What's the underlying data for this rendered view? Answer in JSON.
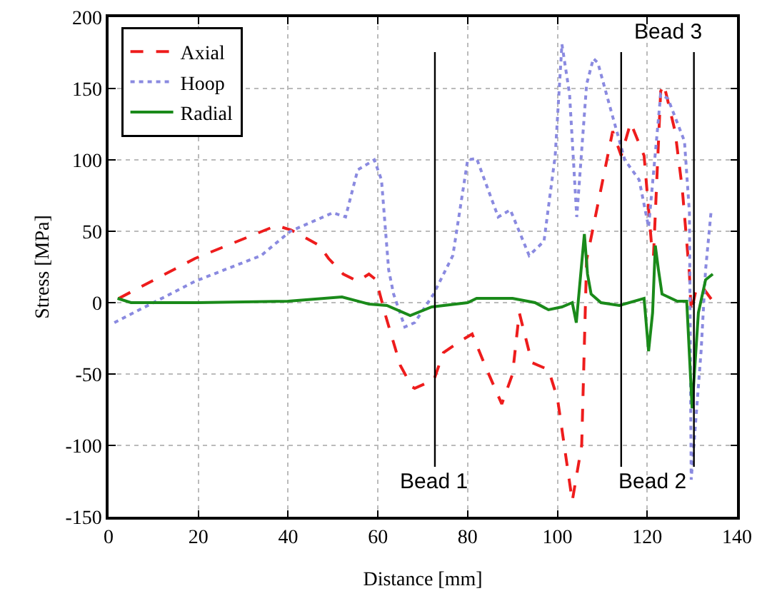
{
  "chart_data": {
    "type": "line",
    "xlabel": "Distance [mm]",
    "ylabel": "Stress [MPa]",
    "xlim": [
      0,
      140
    ],
    "xticks": [
      0,
      20,
      40,
      60,
      80,
      100,
      120,
      140
    ],
    "ylim": [
      -150,
      200
    ],
    "yticks": [
      -150,
      -100,
      -50,
      0,
      50,
      100,
      150,
      200
    ],
    "grid": true,
    "legend": "top left",
    "ref_lines": [
      {
        "axis": "x",
        "value": 72.7,
        "label": "Bead 1",
        "color": "#000000"
      },
      {
        "axis": "x",
        "value": 114.2,
        "label": "Bead 2",
        "color": "#000000"
      },
      {
        "axis": "x",
        "value": 130.4,
        "label": "Bead 3",
        "color": "#000000"
      }
    ],
    "series": [
      {
        "name": "Axial",
        "color": "#ee1c1c",
        "line_style": "dashed",
        "x": [
          2.3,
          19.3,
          37.4,
          40.6,
          47,
          49,
          52.3,
          55.5,
          58,
          59.6,
          61.8,
          65,
          67.6,
          68.2,
          72.5,
          74.6,
          78.3,
          81,
          84,
          87.6,
          90,
          91.5,
          94.3,
          98,
          100,
          103.3,
          105.4,
          106.5,
          112.3,
          114.2,
          116.3,
          119.3,
          120.9,
          121.4,
          123,
          123.7,
          126.2,
          127.8,
          129.4,
          129.8,
          131,
          132.5,
          134.6
        ],
        "values": [
          3,
          31,
          54,
          51,
          40,
          31,
          20,
          15,
          20,
          16,
          -10,
          -44,
          -59,
          -60,
          -54,
          -35,
          -27,
          -22,
          -45,
          -71,
          -50,
          -7,
          -42,
          -47,
          -67,
          -139,
          -100,
          30,
          120,
          103,
          126,
          103,
          43,
          33,
          148,
          153,
          120,
          80,
          20,
          -7,
          11,
          10,
          1
        ]
      },
      {
        "name": "Hoop",
        "color": "#8a8ae0",
        "line_style": "dotted",
        "x": [
          1.3,
          19.3,
          34,
          40.5,
          50,
          52.8,
          55.5,
          59.2,
          60.8,
          62.4,
          63.5,
          66,
          68.2,
          72.4,
          76.7,
          80,
          82,
          86.8,
          89.5,
          93.7,
          97,
          99.5,
          101,
          102.7,
          104.3,
          106.5,
          108,
          109,
          111.8,
          115,
          118.2,
          120.3,
          123,
          124.6,
          126.7,
          128.3,
          129.4,
          129.8,
          132,
          133,
          134.2
        ],
        "values": [
          -14,
          15,
          33,
          50,
          63,
          60,
          93,
          100,
          86,
          23,
          6,
          -17,
          -14,
          6,
          33,
          100,
          101,
          60,
          65,
          33,
          43,
          103,
          181,
          146,
          60,
          153,
          171,
          168,
          136,
          100,
          86,
          53,
          146,
          143,
          126,
          113,
          63,
          -124,
          -34,
          23,
          63
        ]
      },
      {
        "name": "Radial",
        "color": "#1a8a1a",
        "line_style": "solid",
        "x": [
          2,
          5,
          20,
          40,
          52,
          58,
          62,
          67.2,
          72,
          80,
          82,
          90,
          95,
          98,
          101,
          103.3,
          104.2,
          106,
          106.7,
          107.5,
          109.7,
          113.8,
          119.3,
          120.3,
          121.2,
          121.8,
          122.5,
          123.3,
          126.7,
          128.8,
          130,
          131.4,
          133,
          134.6
        ],
        "values": [
          3,
          0,
          0,
          1,
          4,
          -1,
          -2,
          -9,
          -3,
          0,
          3,
          3,
          0,
          -5,
          -3,
          0,
          -14,
          48,
          20,
          6,
          0,
          -2,
          3,
          -34,
          -7,
          40,
          23,
          6,
          1,
          1,
          -74,
          -7,
          16,
          20
        ]
      }
    ]
  }
}
